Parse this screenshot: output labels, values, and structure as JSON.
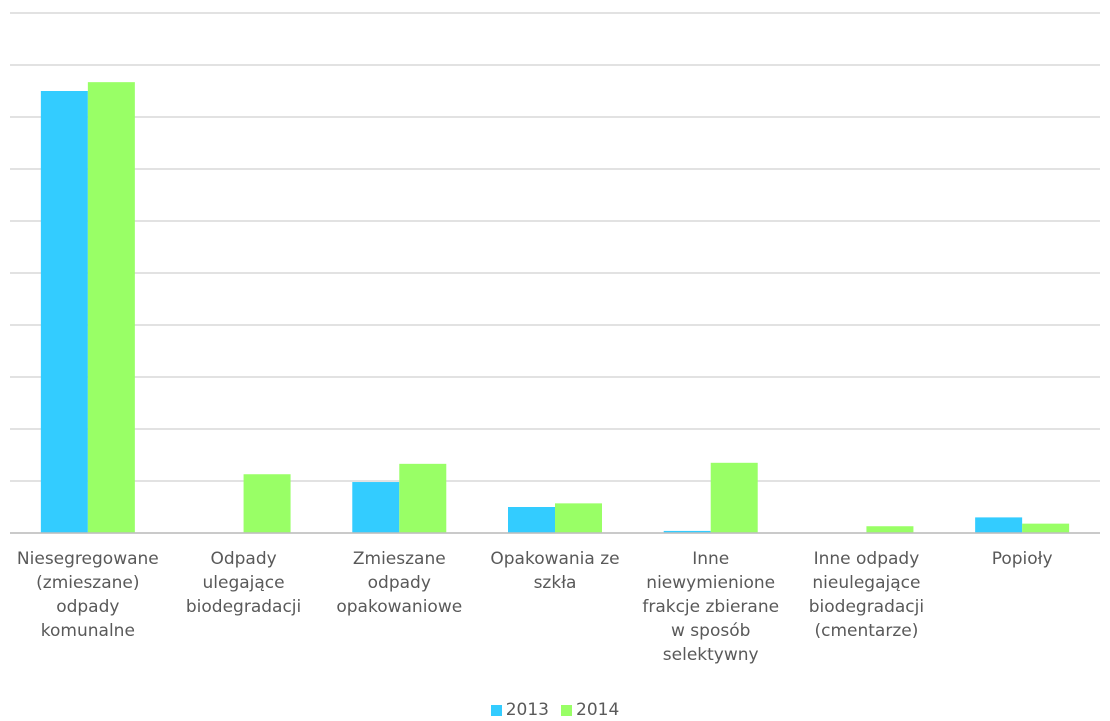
{
  "chart_data": {
    "type": "bar",
    "title": "",
    "xlabel": "",
    "ylabel": "",
    "ylim": [
      0,
      10
    ],
    "grid": true,
    "legend_position": "bottom",
    "categories": [
      "Niesegregowane\n(zmieszane)\nodpady\nkomunalne",
      "Odpady\nulegające\nbiodegradacji",
      "Zmieszane\nodpady\nopakowaniowe",
      "Opakowania ze\nszkła",
      "Inne\nniewymienione\nfrakcje zbierane\nw sposób\nselektywny",
      "Inne odpady\nnieulegające\nbiodegradacji\n(cmentarze)",
      "Popioły"
    ],
    "series": [
      {
        "name": "2013",
        "color": "#33CCFF",
        "values": [
          8.5,
          0,
          0.98,
          0.5,
          0.04,
          0,
          0.3
        ]
      },
      {
        "name": "2014",
        "color": "#99FF66",
        "values": [
          8.67,
          1.13,
          1.33,
          0.57,
          1.35,
          0.13,
          0.18
        ]
      }
    ]
  }
}
